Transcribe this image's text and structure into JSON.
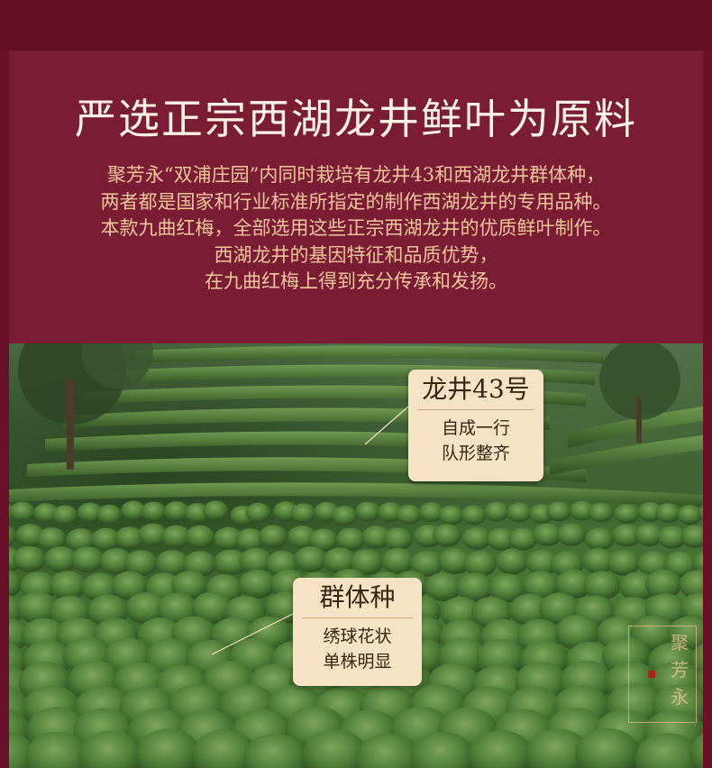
{
  "header": {
    "title": "严选正宗西湖龙井鲜叶为原料"
  },
  "intro": {
    "lines": [
      "聚芳永“双浦庄园”内同时栽培有龙井43和西湖龙井群体种，",
      "两者都是国家和行业标准所指定的制作西湖龙井的专用品种。",
      "本款九曲红梅，全部选用这些正宗西湖龙井的优质鲜叶制作。",
      "西湖龙井的基因特征和品质优势，",
      "在九曲红梅上得到充分传承和发扬。"
    ]
  },
  "labels": [
    {
      "title": "龙井43号",
      "lines": [
        "自成一行",
        "队形整齐"
      ]
    },
    {
      "title": "群体种",
      "lines": [
        "绣球花状",
        "单株明显"
      ]
    }
  ],
  "seal": {
    "text": "聚芳永"
  },
  "colors": {
    "background": "#6a1029",
    "panel": "#7a1c34",
    "title": "#fbf2e6",
    "intro_text": "#f0c79a",
    "label_bg": "#f6e2c4",
    "tea_green": "#4a7a36"
  }
}
